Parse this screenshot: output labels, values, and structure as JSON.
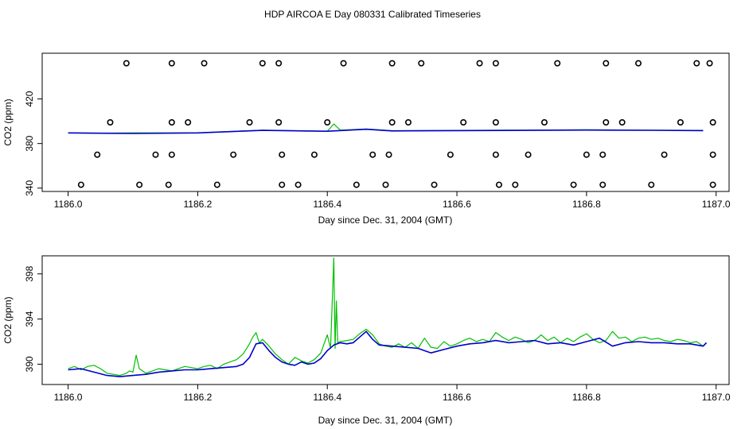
{
  "title": "HDP AIRCOA E  Day 080331  Calibrated Timeseries",
  "colors": {
    "green": "#00c000",
    "blue": "#0000cc",
    "axis": "#000000"
  },
  "chart_data": [
    {
      "type": "scatter",
      "xlabel": "Day since Dec. 31, 2004 (GMT)",
      "ylabel": "CO2 (ppm)",
      "xlim": [
        1185.96,
        1187.02
      ],
      "ylim": [
        337,
        461
      ],
      "xticks": [
        "1186.0",
        "1186.2",
        "1186.4",
        "1186.6",
        "1186.8",
        "1187.0"
      ],
      "yticks": [
        "340",
        "380",
        "420"
      ],
      "markers": {
        "y452": [
          1186.09,
          1186.16,
          1186.21,
          1186.3,
          1186.325,
          1186.425,
          1186.5,
          1186.545,
          1186.635,
          1186.66,
          1186.755,
          1186.83,
          1186.88,
          1186.97,
          1186.99
        ],
        "y399": [
          1186.065,
          1186.16,
          1186.185,
          1186.28,
          1186.325,
          1186.4,
          1186.5,
          1186.525,
          1186.61,
          1186.66,
          1186.735,
          1186.83,
          1186.855,
          1186.945,
          1186.995
        ],
        "y370": [
          1186.045,
          1186.135,
          1186.16,
          1186.255,
          1186.33,
          1186.38,
          1186.47,
          1186.495,
          1186.59,
          1186.66,
          1186.71,
          1186.8,
          1186.825,
          1186.92,
          1186.995
        ],
        "y343": [
          1186.02,
          1186.11,
          1186.155,
          1186.23,
          1186.33,
          1186.355,
          1186.445,
          1186.49,
          1186.565,
          1186.665,
          1186.69,
          1186.78,
          1186.825,
          1186.9,
          1186.995
        ]
      },
      "series": [
        {
          "color": "green",
          "x": [
            1186.0,
            1186.05,
            1186.1,
            1186.2,
            1186.3,
            1186.4,
            1186.41,
            1186.42,
            1186.46,
            1186.5,
            1186.6,
            1186.7,
            1186.8,
            1186.9,
            1186.98
          ],
          "y": [
            389.5,
            389.3,
            389.6,
            389.6,
            392.0,
            391.0,
            397.5,
            392.0,
            393.0,
            391.5,
            391.8,
            392.0,
            392.3,
            392.0,
            391.8
          ]
        },
        {
          "color": "blue",
          "x": [
            1186.0,
            1186.1,
            1186.2,
            1186.3,
            1186.4,
            1186.46,
            1186.5,
            1186.6,
            1186.7,
            1186.8,
            1186.9,
            1186.98
          ],
          "y": [
            389.5,
            389.0,
            389.5,
            391.8,
            391.0,
            392.8,
            391.3,
            391.6,
            391.8,
            392.1,
            391.9,
            391.6
          ]
        }
      ]
    },
    {
      "type": "line",
      "xlabel": "Day since Dec. 31, 2004 (GMT)",
      "ylabel": "CO2 (ppm)",
      "xlim": [
        1185.96,
        1187.02
      ],
      "ylim": [
        388.2,
        399.6
      ],
      "xticks": [
        "1186.0",
        "1186.2",
        "1186.4",
        "1186.6",
        "1186.8",
        "1187.0"
      ],
      "yticks": [
        "390",
        "394",
        "398"
      ],
      "series": [
        {
          "color": "green",
          "x": [
            1186.0,
            1186.01,
            1186.02,
            1186.03,
            1186.04,
            1186.05,
            1186.06,
            1186.07,
            1186.08,
            1186.09,
            1186.095,
            1186.1,
            1186.105,
            1186.11,
            1186.12,
            1186.13,
            1186.14,
            1186.15,
            1186.16,
            1186.17,
            1186.18,
            1186.19,
            1186.2,
            1186.21,
            1186.22,
            1186.23,
            1186.24,
            1186.25,
            1186.26,
            1186.27,
            1186.28,
            1186.285,
            1186.29,
            1186.295,
            1186.3,
            1186.31,
            1186.32,
            1186.33,
            1186.34,
            1186.35,
            1186.36,
            1186.37,
            1186.38,
            1186.39,
            1186.4,
            1186.405,
            1186.41,
            1186.412,
            1186.414,
            1186.416,
            1186.42,
            1186.43,
            1186.44,
            1186.45,
            1186.46,
            1186.47,
            1186.48,
            1186.49,
            1186.5,
            1186.51,
            1186.52,
            1186.53,
            1186.54,
            1186.55,
            1186.56,
            1186.57,
            1186.58,
            1186.59,
            1186.6,
            1186.61,
            1186.62,
            1186.63,
            1186.64,
            1186.65,
            1186.66,
            1186.67,
            1186.68,
            1186.69,
            1186.7,
            1186.71,
            1186.72,
            1186.73,
            1186.74,
            1186.75,
            1186.76,
            1186.77,
            1186.78,
            1186.79,
            1186.8,
            1186.81,
            1186.82,
            1186.83,
            1186.84,
            1186.85,
            1186.86,
            1186.87,
            1186.88,
            1186.89,
            1186.9,
            1186.91,
            1186.92,
            1186.93,
            1186.94,
            1186.95,
            1186.96,
            1186.97,
            1186.98,
            1186.985
          ],
          "y": [
            389.6,
            389.8,
            389.5,
            389.8,
            389.9,
            389.6,
            389.2,
            389.1,
            389.0,
            389.2,
            389.4,
            389.3,
            390.8,
            389.6,
            389.2,
            389.4,
            389.6,
            389.5,
            389.4,
            389.6,
            389.8,
            389.7,
            389.6,
            389.8,
            389.9,
            389.6,
            390.0,
            390.2,
            390.4,
            390.9,
            391.8,
            392.4,
            392.8,
            391.9,
            392.2,
            391.6,
            390.9,
            390.4,
            390.0,
            390.6,
            390.3,
            390.1,
            390.4,
            391.0,
            392.6,
            391.4,
            399.4,
            391.4,
            395.6,
            391.9,
            392.0,
            392.1,
            392.2,
            392.7,
            393.1,
            392.6,
            391.8,
            391.6,
            391.5,
            391.8,
            391.5,
            391.9,
            391.4,
            392.3,
            391.5,
            391.4,
            392.0,
            391.6,
            391.8,
            392.1,
            392.3,
            392.0,
            392.2,
            392.0,
            392.8,
            392.4,
            392.1,
            392.4,
            392.2,
            391.9,
            392.1,
            392.6,
            392.1,
            392.4,
            391.9,
            392.3,
            392.0,
            392.4,
            392.7,
            392.2,
            391.9,
            392.1,
            392.9,
            392.3,
            392.4,
            392.0,
            392.3,
            392.4,
            392.2,
            392.3,
            392.1,
            392.0,
            392.2,
            392.1,
            391.9,
            392.0,
            391.6,
            391.9
          ]
        },
        {
          "color": "blue",
          "x": [
            1186.0,
            1186.02,
            1186.04,
            1186.06,
            1186.08,
            1186.1,
            1186.12,
            1186.14,
            1186.16,
            1186.18,
            1186.2,
            1186.22,
            1186.24,
            1186.26,
            1186.27,
            1186.28,
            1186.29,
            1186.3,
            1186.31,
            1186.32,
            1186.33,
            1186.34,
            1186.35,
            1186.36,
            1186.37,
            1186.38,
            1186.39,
            1186.4,
            1186.41,
            1186.42,
            1186.43,
            1186.44,
            1186.45,
            1186.46,
            1186.47,
            1186.48,
            1186.5,
            1186.52,
            1186.54,
            1186.56,
            1186.58,
            1186.6,
            1186.62,
            1186.64,
            1186.66,
            1186.68,
            1186.7,
            1186.72,
            1186.74,
            1186.76,
            1186.78,
            1186.8,
            1186.82,
            1186.84,
            1186.86,
            1186.88,
            1186.9,
            1186.92,
            1186.94,
            1186.96,
            1186.98,
            1186.985
          ],
          "y": [
            389.5,
            389.6,
            389.3,
            389.0,
            388.9,
            389.0,
            389.1,
            389.3,
            389.4,
            389.5,
            389.5,
            389.6,
            389.7,
            389.8,
            390.0,
            390.6,
            391.8,
            391.9,
            391.2,
            390.6,
            390.2,
            390.0,
            389.9,
            390.2,
            390.0,
            390.1,
            390.5,
            391.2,
            391.7,
            391.9,
            391.8,
            391.9,
            392.4,
            392.9,
            392.2,
            391.7,
            391.6,
            391.5,
            391.4,
            391.0,
            391.3,
            391.6,
            391.8,
            391.9,
            392.1,
            391.9,
            392.0,
            392.1,
            391.8,
            391.9,
            391.7,
            392.0,
            392.3,
            391.6,
            391.9,
            392.0,
            391.9,
            391.9,
            391.8,
            391.8,
            391.6,
            391.9
          ]
        }
      ]
    }
  ]
}
